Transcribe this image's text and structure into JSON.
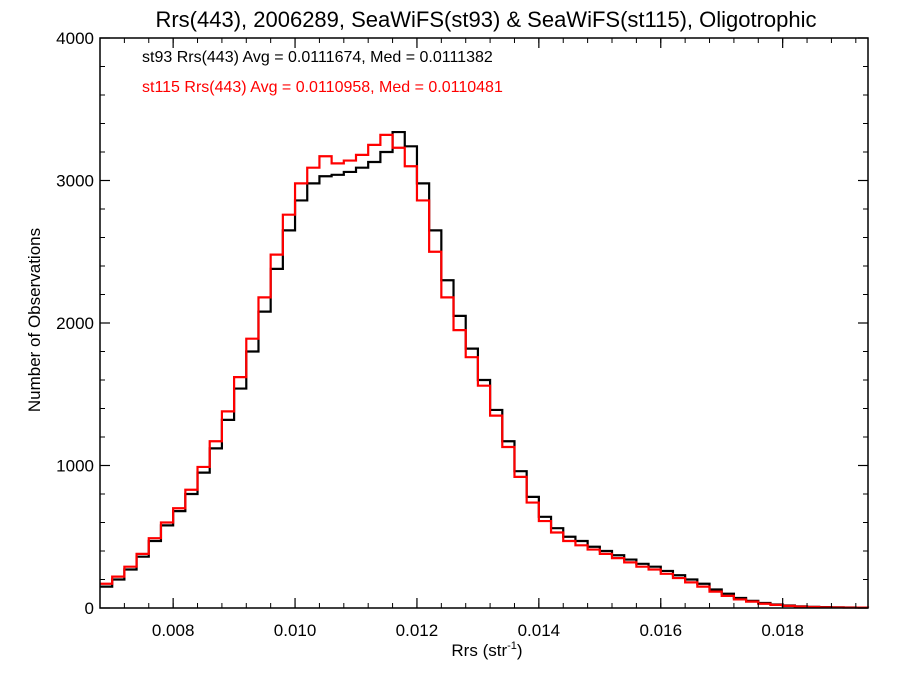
{
  "chart_data": {
    "type": "line",
    "title": "Rrs(443), 2006289, SeaWiFS(st93) & SeaWiFS(st115), Oligotrophic",
    "xlabel": "Rrs (str",
    "xlabel_sup": "-1",
    "xlabel_suffix": ")",
    "ylabel": "Number of Observations",
    "xlim": [
      0.0068,
      0.0194
    ],
    "ylim": [
      0,
      4000
    ],
    "xticks": [
      {
        "value": 0.008,
        "label": "0.008"
      },
      {
        "value": 0.01,
        "label": "0.010"
      },
      {
        "value": 0.012,
        "label": "0.012"
      },
      {
        "value": 0.014,
        "label": "0.014"
      },
      {
        "value": 0.016,
        "label": "0.016"
      },
      {
        "value": 0.018,
        "label": "0.018"
      }
    ],
    "yticks": [
      {
        "value": 0,
        "label": "0"
      },
      {
        "value": 1000,
        "label": "1000"
      },
      {
        "value": 2000,
        "label": "2000"
      },
      {
        "value": 3000,
        "label": "3000"
      },
      {
        "value": 4000,
        "label": "4000"
      }
    ],
    "grid": false,
    "legend_position": "top-left",
    "annotations": [
      {
        "text": "st93 Rrs(443) Avg = 0.0111674, Med = 0.0111382",
        "color": "#000000"
      },
      {
        "text": "st115 Rrs(443) Avg = 0.0110958, Med = 0.0110481",
        "color": "#ff0000"
      }
    ],
    "series": [
      {
        "color": "#000000",
        "step": true,
        "x": [
          0.0068,
          0.007,
          0.0072,
          0.0074,
          0.0076,
          0.0078,
          0.008,
          0.0082,
          0.0084,
          0.0086,
          0.0088,
          0.009,
          0.0092,
          0.0094,
          0.0096,
          0.0098,
          0.01,
          0.0102,
          0.0104,
          0.0106,
          0.0108,
          0.011,
          0.0112,
          0.0114,
          0.0116,
          0.0118,
          0.012,
          0.0122,
          0.0124,
          0.0126,
          0.0128,
          0.013,
          0.0132,
          0.0134,
          0.0136,
          0.0138,
          0.014,
          0.0142,
          0.0144,
          0.0146,
          0.0148,
          0.015,
          0.0152,
          0.0154,
          0.0156,
          0.0158,
          0.016,
          0.0162,
          0.0164,
          0.0166,
          0.0168,
          0.017,
          0.0172,
          0.0174,
          0.0176,
          0.0178,
          0.018,
          0.0182,
          0.0184,
          0.0186,
          0.0188,
          0.019,
          0.0192,
          0.0194
        ],
        "values": [
          150,
          200,
          270,
          360,
          470,
          580,
          680,
          800,
          950,
          1120,
          1320,
          1540,
          1800,
          2080,
          2380,
          2650,
          2860,
          2980,
          3030,
          3040,
          3060,
          3090,
          3130,
          3200,
          3340,
          3240,
          2980,
          2650,
          2300,
          2050,
          1820,
          1600,
          1390,
          1170,
          960,
          780,
          640,
          560,
          500,
          470,
          430,
          400,
          370,
          340,
          310,
          290,
          260,
          230,
          200,
          170,
          130,
          100,
          70,
          50,
          35,
          25,
          18,
          12,
          8,
          6,
          5,
          4,
          3,
          3
        ]
      },
      {
        "color": "#ff0000",
        "step": true,
        "x": [
          0.0068,
          0.007,
          0.0072,
          0.0074,
          0.0076,
          0.0078,
          0.008,
          0.0082,
          0.0084,
          0.0086,
          0.0088,
          0.009,
          0.0092,
          0.0094,
          0.0096,
          0.0098,
          0.01,
          0.0102,
          0.0104,
          0.0106,
          0.0108,
          0.011,
          0.0112,
          0.0114,
          0.0116,
          0.0118,
          0.012,
          0.0122,
          0.0124,
          0.0126,
          0.0128,
          0.013,
          0.0132,
          0.0134,
          0.0136,
          0.0138,
          0.014,
          0.0142,
          0.0144,
          0.0146,
          0.0148,
          0.015,
          0.0152,
          0.0154,
          0.0156,
          0.0158,
          0.016,
          0.0162,
          0.0164,
          0.0166,
          0.0168,
          0.017,
          0.0172,
          0.0174,
          0.0176,
          0.0178,
          0.018,
          0.0182,
          0.0184,
          0.0186,
          0.0188,
          0.019,
          0.0192,
          0.0194
        ],
        "values": [
          170,
          220,
          290,
          380,
          490,
          600,
          700,
          830,
          990,
          1170,
          1380,
          1620,
          1890,
          2180,
          2480,
          2760,
          2980,
          3090,
          3170,
          3120,
          3140,
          3180,
          3250,
          3320,
          3230,
          3100,
          2860,
          2500,
          2180,
          1950,
          1760,
          1560,
          1350,
          1130,
          920,
          740,
          610,
          530,
          470,
          440,
          410,
          380,
          350,
          320,
          290,
          270,
          240,
          210,
          180,
          150,
          115,
          85,
          60,
          45,
          30,
          22,
          15,
          10,
          7,
          5,
          4,
          3,
          3,
          2
        ]
      }
    ]
  }
}
